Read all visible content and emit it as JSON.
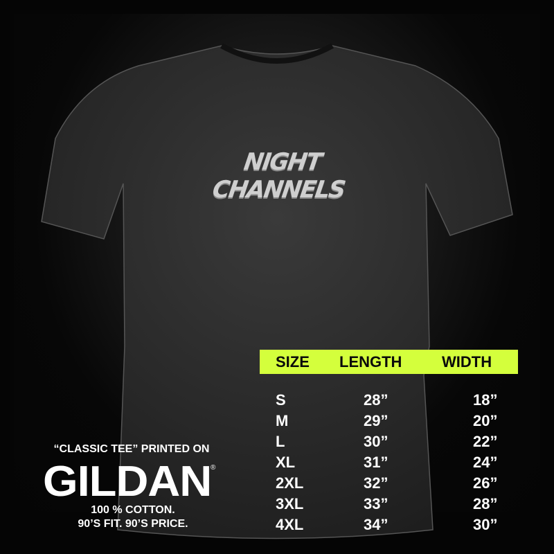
{
  "brand_logo": "NIGHT CHANNELS",
  "size_chart": {
    "accent_color": "#d4ff3c",
    "headers": [
      "SIZE",
      "LENGTH",
      "WIDTH"
    ],
    "rows": [
      [
        "S",
        "28”",
        "18”"
      ],
      [
        "M",
        "29”",
        "20”"
      ],
      [
        "L",
        "30”",
        "22”"
      ],
      [
        "XL",
        "31”",
        "24”"
      ],
      [
        "2XL",
        "32”",
        "26”"
      ],
      [
        "3XL",
        "33”",
        "28”"
      ],
      [
        "4XL",
        "34”",
        "30”"
      ]
    ]
  },
  "promo": {
    "line1": "“CLASSIC TEE” PRINTED ON",
    "manufacturer_logo": "GILDAN",
    "registered": "®",
    "line2": "100 % COTTON.",
    "line3": "90’S FIT. 90’S PRICE."
  }
}
